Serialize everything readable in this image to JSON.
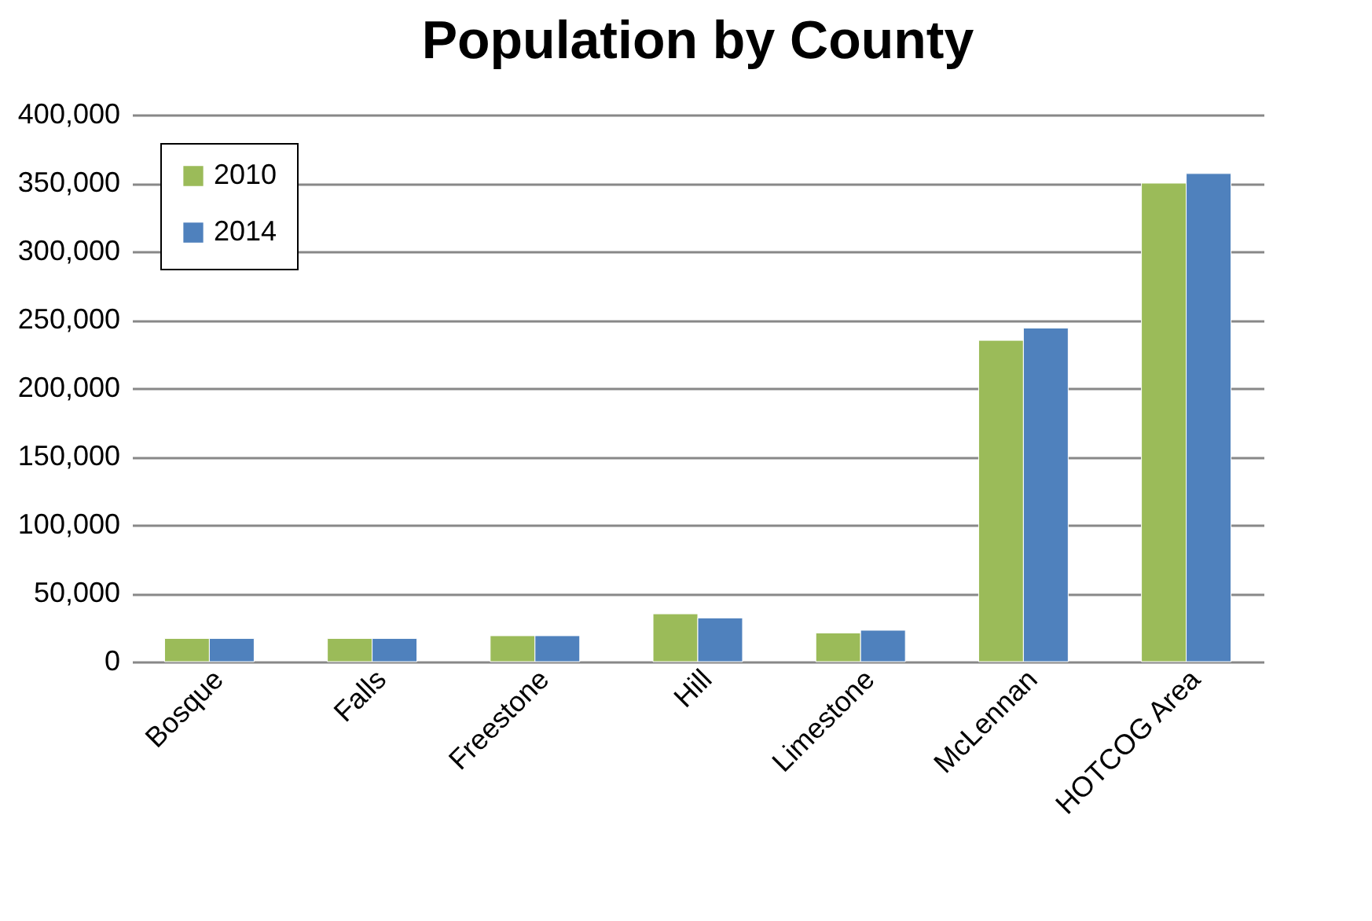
{
  "chart_data": {
    "type": "bar",
    "title": "Population by County",
    "categories": [
      "Bosque",
      "Falls",
      "Freestone",
      "Hill",
      "Limestone",
      "McLennan",
      "HOTCOG Area"
    ],
    "series": [
      {
        "name": "2010",
        "color": "#9bbb59",
        "values": [
          17000,
          17000,
          19000,
          35000,
          21000,
          235000,
          350000
        ]
      },
      {
        "name": "2014",
        "color": "#4f81bd",
        "values": [
          17000,
          17000,
          19000,
          32000,
          23000,
          244000,
          357000
        ]
      }
    ],
    "ylim": [
      0,
      400000
    ],
    "yticks": [
      {
        "value": 0,
        "label": "0"
      },
      {
        "value": 50000,
        "label": "50,000"
      },
      {
        "value": 100000,
        "label": "100,000"
      },
      {
        "value": 150000,
        "label": "150,000"
      },
      {
        "value": 200000,
        "label": "200,000"
      },
      {
        "value": 250000,
        "label": "250,000"
      },
      {
        "value": 300000,
        "label": "300,000"
      },
      {
        "value": 350000,
        "label": "350,000"
      },
      {
        "value": 400000,
        "label": "400,000"
      }
    ],
    "grid": "y",
    "legend": "top left"
  }
}
